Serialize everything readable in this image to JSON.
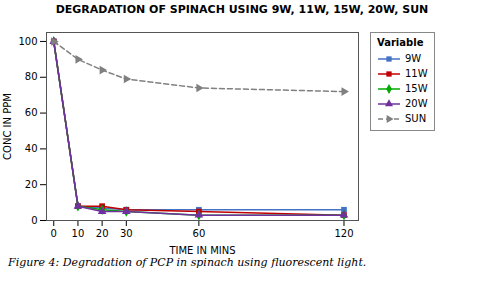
{
  "chart_data": {
    "type": "line",
    "title": "DEGRADATION OF SPINACH USING   9W, 11W, 15W, 20W, SUN",
    "xlabel": "TIME IN MINS",
    "ylabel": "CONC IN PPM",
    "caption": "Figure 4: Degradation of PCP in spinach using fluorescent light.",
    "legend_title": "Variable",
    "x": [
      0,
      10,
      20,
      30,
      60,
      120
    ],
    "series": [
      {
        "name": "9W",
        "color": "#4472C4",
        "marker": "square",
        "line_style": "solid",
        "values": [
          100,
          8,
          7,
          6,
          6,
          6
        ]
      },
      {
        "name": "11W",
        "color": "#C00000",
        "marker": "square",
        "line_style": "solid",
        "values": [
          100,
          8,
          8,
          6,
          5,
          3
        ]
      },
      {
        "name": "15W",
        "color": "#00AA00",
        "marker": "diamond",
        "line_style": "solid",
        "values": [
          100,
          8,
          6,
          5,
          3,
          3
        ]
      },
      {
        "name": "20W",
        "color": "#7030A0",
        "marker": "triangle-up",
        "line_style": "solid",
        "values": [
          100,
          8,
          5,
          5,
          3,
          3
        ]
      },
      {
        "name": "SUN",
        "color": "#808080",
        "marker": "triangle-right",
        "line_style": "dashed",
        "values": [
          100,
          90,
          84,
          79,
          74,
          72
        ]
      }
    ],
    "xlim": [
      -3,
      126
    ],
    "ylim": [
      0,
      105
    ],
    "xticks": [
      0,
      10,
      20,
      30,
      60,
      120
    ],
    "yticks": [
      0,
      20,
      40,
      60,
      80,
      100
    ],
    "grid": false,
    "legend": "right"
  }
}
